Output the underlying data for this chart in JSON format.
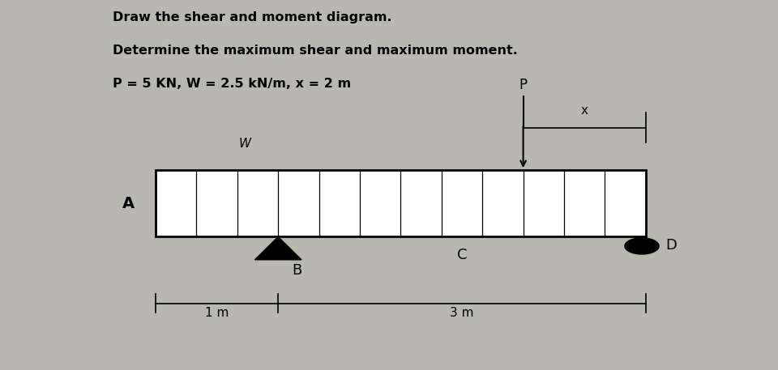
{
  "title_line1": "Draw the shear and moment diagram.",
  "title_line2": "Determine the maximum shear and maximum moment.",
  "title_line3": "P = 5 KN, W = 2.5 kN/m, x = 2 m",
  "bg_color": "#b8b8b0",
  "label_A": "A",
  "label_B": "B",
  "label_C": "C",
  "label_D": "D",
  "label_W": "W",
  "label_P": "P",
  "label_x": "x",
  "dim_1m": "1 m",
  "dim_3m": "3 m",
  "text_color": "#000000"
}
